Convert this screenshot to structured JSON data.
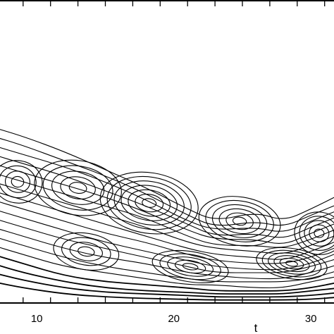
{
  "chart_data": {
    "type": "contour",
    "title": "",
    "xlabel": "t",
    "ylabel": "",
    "x_tick_labels": [
      "10",
      "20",
      "30"
    ],
    "x_ticks": [
      10,
      20,
      30
    ],
    "xlim": [
      6.8,
      32.2
    ],
    "grid": false,
    "legend": "none",
    "line_color": "#000000",
    "series": [
      {
        "values": [
          [
            6.8,
            0.58
          ],
          [
            9,
            0.55
          ],
          [
            12,
            0.5
          ],
          [
            15,
            0.44
          ],
          [
            18,
            0.38
          ],
          [
            21,
            0.31
          ],
          [
            23,
            0.27
          ],
          [
            26,
            0.3
          ],
          [
            28,
            0.27
          ],
          [
            30,
            0.31
          ],
          [
            32.2,
            0.36
          ]
        ]
      },
      {
        "values": [
          [
            6.8,
            0.55
          ],
          [
            9,
            0.52
          ],
          [
            12,
            0.47
          ],
          [
            15,
            0.42
          ],
          [
            18,
            0.36
          ],
          [
            21,
            0.29
          ],
          [
            23,
            0.25
          ],
          [
            26,
            0.27
          ],
          [
            28,
            0.25
          ],
          [
            30,
            0.29
          ],
          [
            32.2,
            0.33
          ]
        ]
      },
      {
        "values": [
          [
            6.8,
            0.52
          ],
          [
            9,
            0.49
          ],
          [
            12,
            0.45
          ],
          [
            15,
            0.4
          ],
          [
            18,
            0.34
          ],
          [
            21,
            0.27
          ],
          [
            23,
            0.24
          ],
          [
            26,
            0.25
          ],
          [
            28,
            0.23
          ],
          [
            30,
            0.27
          ],
          [
            32.2,
            0.31
          ]
        ]
      },
      {
        "values": [
          [
            6.8,
            0.49
          ],
          [
            9,
            0.46
          ],
          [
            12,
            0.42
          ],
          [
            15,
            0.37
          ],
          [
            18,
            0.32
          ],
          [
            21,
            0.26
          ],
          [
            23,
            0.22
          ],
          [
            26,
            0.23
          ],
          [
            28,
            0.21
          ],
          [
            30,
            0.25
          ],
          [
            32.2,
            0.29
          ]
        ]
      },
      {
        "values": [
          [
            6.8,
            0.46
          ],
          [
            9,
            0.43
          ],
          [
            12,
            0.39
          ],
          [
            15,
            0.35
          ],
          [
            18,
            0.3
          ],
          [
            21,
            0.24
          ],
          [
            23,
            0.21
          ],
          [
            26,
            0.21
          ],
          [
            28,
            0.19
          ],
          [
            30,
            0.23
          ],
          [
            32.2,
            0.27
          ]
        ]
      },
      {
        "values": [
          [
            6.8,
            0.43
          ],
          [
            9,
            0.4
          ],
          [
            12,
            0.36
          ],
          [
            15,
            0.32
          ],
          [
            18,
            0.28
          ],
          [
            21,
            0.22
          ],
          [
            23,
            0.19
          ],
          [
            26,
            0.19
          ],
          [
            28,
            0.18
          ],
          [
            30,
            0.21
          ],
          [
            32.2,
            0.25
          ]
        ]
      },
      {
        "values": [
          [
            6.8,
            0.4
          ],
          [
            9,
            0.37
          ],
          [
            12,
            0.33
          ],
          [
            15,
            0.29
          ],
          [
            18,
            0.25
          ],
          [
            21,
            0.2
          ],
          [
            23,
            0.18
          ],
          [
            26,
            0.17
          ],
          [
            28,
            0.16
          ],
          [
            30,
            0.19
          ],
          [
            32.2,
            0.23
          ]
        ]
      },
      {
        "values": [
          [
            6.8,
            0.37
          ],
          [
            9,
            0.34
          ],
          [
            12,
            0.3
          ],
          [
            15,
            0.26
          ],
          [
            18,
            0.22
          ],
          [
            21,
            0.18
          ],
          [
            23,
            0.16
          ],
          [
            26,
            0.15
          ],
          [
            28,
            0.14
          ],
          [
            30,
            0.17
          ],
          [
            32.2,
            0.21
          ]
        ]
      },
      {
        "values": [
          [
            6.8,
            0.34
          ],
          [
            9,
            0.31
          ],
          [
            12,
            0.27
          ],
          [
            15,
            0.23
          ],
          [
            18,
            0.2
          ],
          [
            21,
            0.16
          ],
          [
            23,
            0.14
          ],
          [
            26,
            0.13
          ],
          [
            28,
            0.13
          ],
          [
            30,
            0.15
          ],
          [
            32.2,
            0.19
          ]
        ]
      },
      {
        "values": [
          [
            6.8,
            0.31
          ],
          [
            9,
            0.28
          ],
          [
            12,
            0.24
          ],
          [
            15,
            0.2
          ],
          [
            18,
            0.17
          ],
          [
            21,
            0.14
          ],
          [
            23,
            0.12
          ],
          [
            26,
            0.11
          ],
          [
            28,
            0.11
          ],
          [
            30,
            0.13
          ],
          [
            32.2,
            0.17
          ]
        ]
      },
      {
        "values": [
          [
            6.8,
            0.28
          ],
          [
            9,
            0.25
          ],
          [
            12,
            0.21
          ],
          [
            15,
            0.18
          ],
          [
            18,
            0.15
          ],
          [
            21,
            0.12
          ],
          [
            23,
            0.1
          ],
          [
            26,
            0.1
          ],
          [
            28,
            0.1
          ],
          [
            30,
            0.12
          ],
          [
            32.2,
            0.15
          ]
        ]
      },
      {
        "values": [
          [
            6.8,
            0.25
          ],
          [
            9,
            0.22
          ],
          [
            12,
            0.18
          ],
          [
            15,
            0.15
          ],
          [
            18,
            0.13
          ],
          [
            21,
            0.1
          ],
          [
            23,
            0.09
          ],
          [
            26,
            0.08
          ],
          [
            28,
            0.08
          ],
          [
            30,
            0.1
          ],
          [
            32.2,
            0.13
          ]
        ]
      },
      {
        "values": [
          [
            6.8,
            0.22
          ],
          [
            9,
            0.19
          ],
          [
            12,
            0.15
          ],
          [
            15,
            0.12
          ],
          [
            18,
            0.1
          ],
          [
            21,
            0.08
          ],
          [
            23,
            0.07
          ],
          [
            26,
            0.07
          ],
          [
            28,
            0.07
          ],
          [
            30,
            0.08
          ],
          [
            32.2,
            0.11
          ]
        ]
      },
      {
        "values": [
          [
            6.8,
            0.19
          ],
          [
            9,
            0.16
          ],
          [
            12,
            0.12
          ],
          [
            15,
            0.1
          ],
          [
            18,
            0.08
          ],
          [
            21,
            0.06
          ],
          [
            23,
            0.06
          ],
          [
            26,
            0.05
          ],
          [
            28,
            0.05
          ],
          [
            30,
            0.07
          ],
          [
            32.2,
            0.09
          ]
        ]
      },
      {
        "values": [
          [
            6.8,
            0.16
          ],
          [
            9,
            0.13
          ],
          [
            12,
            0.09
          ],
          [
            15,
            0.07
          ],
          [
            18,
            0.06
          ],
          [
            21,
            0.05
          ],
          [
            23,
            0.04
          ],
          [
            26,
            0.04
          ],
          [
            28,
            0.04
          ],
          [
            30,
            0.05
          ],
          [
            32.2,
            0.07
          ]
        ]
      },
      {
        "values": [
          [
            6.8,
            0.13
          ],
          [
            9,
            0.1
          ],
          [
            12,
            0.07
          ],
          [
            15,
            0.05
          ],
          [
            18,
            0.04
          ],
          [
            21,
            0.035
          ],
          [
            23,
            0.03
          ],
          [
            26,
            0.03
          ],
          [
            28,
            0.03
          ],
          [
            30,
            0.04
          ],
          [
            32.2,
            0.05
          ]
        ]
      },
      {
        "values": [
          [
            6.8,
            0.1
          ],
          [
            9,
            0.075
          ],
          [
            12,
            0.05
          ],
          [
            15,
            0.035
          ],
          [
            18,
            0.03
          ],
          [
            21,
            0.025
          ],
          [
            23,
            0.02
          ],
          [
            26,
            0.02
          ],
          [
            28,
            0.02
          ],
          [
            30,
            0.025
          ],
          [
            32.2,
            0.035
          ]
        ]
      },
      {
        "values": [
          [
            6.8,
            0.07
          ],
          [
            9,
            0.05
          ],
          [
            12,
            0.03
          ],
          [
            15,
            0.02
          ],
          [
            18,
            0.015
          ],
          [
            21,
            0.012
          ],
          [
            23,
            0.01
          ],
          [
            26,
            0.01
          ],
          [
            28,
            0.01
          ],
          [
            30,
            0.012
          ],
          [
            32.2,
            0.02
          ]
        ]
      }
    ],
    "loops": [
      {
        "cx": 8.6,
        "cy": 0.4,
        "rx": 1.8,
        "ry": 0.07,
        "rings": 4
      },
      {
        "cx": 13.0,
        "cy": 0.38,
        "rx": 3.2,
        "ry": 0.09,
        "rings": 5
      },
      {
        "cx": 18.2,
        "cy": 0.33,
        "rx": 3.6,
        "ry": 0.1,
        "rings": 7
      },
      {
        "cx": 24.8,
        "cy": 0.27,
        "rx": 3.0,
        "ry": 0.08,
        "rings": 6
      },
      {
        "cx": 30.6,
        "cy": 0.23,
        "rx": 1.8,
        "ry": 0.07,
        "rings": 5
      },
      {
        "cx": 13.6,
        "cy": 0.17,
        "rx": 2.4,
        "ry": 0.06,
        "rings": 4
      },
      {
        "cx": 21.2,
        "cy": 0.12,
        "rx": 2.8,
        "ry": 0.05,
        "rings": 5
      },
      {
        "cx": 28.6,
        "cy": 0.13,
        "rx": 2.6,
        "ry": 0.05,
        "rings": 6
      }
    ]
  }
}
